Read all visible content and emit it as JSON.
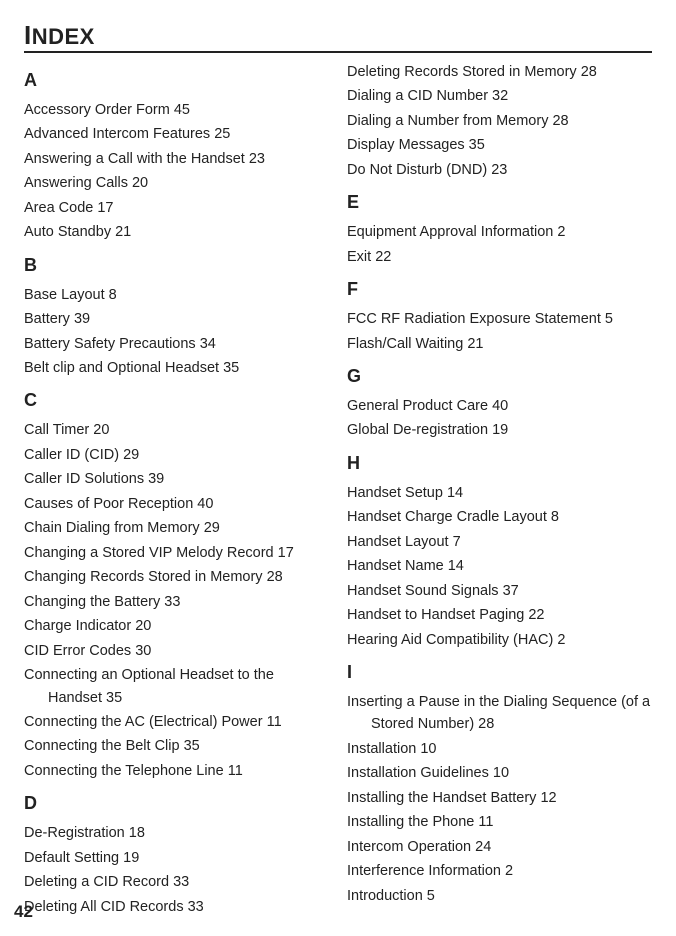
{
  "title_html": "<span class='bigI'>I</span>NDEX",
  "page_number": "42",
  "left": [
    {
      "type": "letter",
      "text": "A"
    },
    {
      "type": "entry",
      "text": "Accessory Order Form  45"
    },
    {
      "type": "entry",
      "text": "Advanced Intercom Features  25"
    },
    {
      "type": "entry",
      "text": "Answering a Call with the Handset  23"
    },
    {
      "type": "entry",
      "text": "Answering Calls  20"
    },
    {
      "type": "entry",
      "text": "Area Code  17"
    },
    {
      "type": "entry",
      "text": "Auto Standby  21"
    },
    {
      "type": "letter",
      "text": "B"
    },
    {
      "type": "entry",
      "text": "Base Layout  8"
    },
    {
      "type": "entry",
      "text": "Battery  39"
    },
    {
      "type": "entry",
      "text": "Battery Safety Precautions  34"
    },
    {
      "type": "entry",
      "text": "Belt clip and Optional Headset  35"
    },
    {
      "type": "letter",
      "text": "C"
    },
    {
      "type": "entry",
      "text": "Call Timer  20"
    },
    {
      "type": "entry",
      "text": "Caller ID (CID)  29"
    },
    {
      "type": "entry",
      "text": "Caller ID Solutions  39"
    },
    {
      "type": "entry",
      "text": "Causes of Poor Reception  40"
    },
    {
      "type": "entry",
      "text": "Chain Dialing from Memory  29"
    },
    {
      "type": "hang",
      "text": "Changing a Stored VIP Melody Record  17"
    },
    {
      "type": "entry",
      "text": "Changing Records Stored in Memory  28"
    },
    {
      "type": "entry",
      "text": "Changing the Battery  33"
    },
    {
      "type": "entry",
      "text": "Charge Indicator  20"
    },
    {
      "type": "entry",
      "text": "CID Error Codes  30"
    },
    {
      "type": "hang",
      "text": "Connecting an Optional Headset to the Handset  35"
    },
    {
      "type": "entry",
      "text": "Connecting the AC (Electrical) Power  11"
    },
    {
      "type": "entry",
      "text": "Connecting the Belt Clip  35"
    },
    {
      "type": "entry",
      "text": "Connecting the Telephone Line  11"
    },
    {
      "type": "letter",
      "text": "D"
    },
    {
      "type": "entry",
      "text": "De-Registration  18"
    },
    {
      "type": "entry",
      "text": "Default Setting  19"
    },
    {
      "type": "entry",
      "text": "Deleting a CID Record  33"
    },
    {
      "type": "entry",
      "text": "Deleting All CID Records  33"
    }
  ],
  "right": [
    {
      "type": "entry",
      "text": "Deleting Records Stored in Memory  28"
    },
    {
      "type": "entry",
      "text": "Dialing a CID Number  32"
    },
    {
      "type": "entry",
      "text": "Dialing a Number from Memory  28"
    },
    {
      "type": "entry",
      "text": "Display Messages  35"
    },
    {
      "type": "entry",
      "text": "Do Not Disturb (DND)  23"
    },
    {
      "type": "letter",
      "text": "E"
    },
    {
      "type": "entry",
      "text": "Equipment Approval Information  2"
    },
    {
      "type": "entry",
      "text": "Exit  22"
    },
    {
      "type": "letter",
      "text": "F"
    },
    {
      "type": "entry",
      "text": "FCC RF Radiation Exposure Statement  5"
    },
    {
      "type": "entry",
      "text": "Flash/Call Waiting  21"
    },
    {
      "type": "letter",
      "text": "G"
    },
    {
      "type": "entry",
      "text": "General Product Care  40"
    },
    {
      "type": "entry",
      "text": "Global De-registration  19"
    },
    {
      "type": "letter",
      "text": "H"
    },
    {
      "type": "entry",
      "text": "Handset  Setup  14"
    },
    {
      "type": "entry",
      "text": "Handset Charge Cradle Layout  8"
    },
    {
      "type": "entry",
      "text": "Handset Layout  7"
    },
    {
      "type": "entry",
      "text": "Handset Name  14"
    },
    {
      "type": "entry",
      "text": "Handset Sound Signals  37"
    },
    {
      "type": "entry",
      "text": "Handset to Handset Paging  22"
    },
    {
      "type": "entry",
      "text": "Hearing Aid Compatibility (HAC)  2"
    },
    {
      "type": "letter",
      "text": "I"
    },
    {
      "type": "hang",
      "text": "Inserting a Pause in the Dialing Sequence (of a Stored Number)  28"
    },
    {
      "type": "entry",
      "text": "Installation  10"
    },
    {
      "type": "entry",
      "text": "Installation Guidelines  10"
    },
    {
      "type": "entry",
      "text": "Installing the Handset Battery  12"
    },
    {
      "type": "entry",
      "text": "Installing the Phone  11"
    },
    {
      "type": "entry",
      "text": "Intercom Operation  24"
    },
    {
      "type": "entry",
      "text": "Interference Information  2"
    },
    {
      "type": "entry",
      "text": "Introduction  5"
    }
  ]
}
